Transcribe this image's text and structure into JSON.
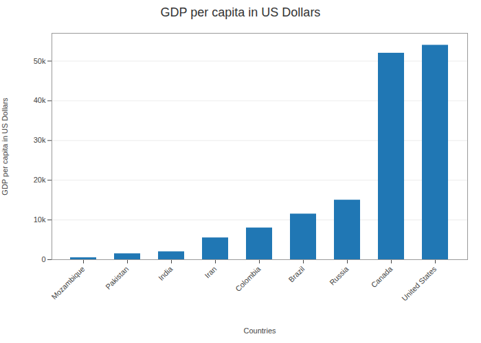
{
  "chart_data": {
    "type": "bar",
    "title": "GDP per capita in US Dollars",
    "xlabel": "Countries",
    "ylabel": "GDP per capita in US Dollars",
    "categories": [
      "Mozambique",
      "Pakistan",
      "India",
      "Iran",
      "Colombia",
      "Brazil",
      "Russia",
      "Canada",
      "United States"
    ],
    "values": [
      500,
      1500,
      2000,
      5500,
      8000,
      11500,
      15000,
      52000,
      54000
    ],
    "color": "#2077b4",
    "ylim": [
      0,
      57000
    ],
    "yticks": [
      0,
      {
        "value": 10000,
        "label": "10k"
      },
      {
        "value": 20000,
        "label": "20k"
      },
      {
        "value": 30000,
        "label": "30k"
      },
      {
        "value": 40000,
        "label": "40k"
      },
      {
        "value": 50000,
        "label": "50k"
      }
    ],
    "grid": true
  }
}
